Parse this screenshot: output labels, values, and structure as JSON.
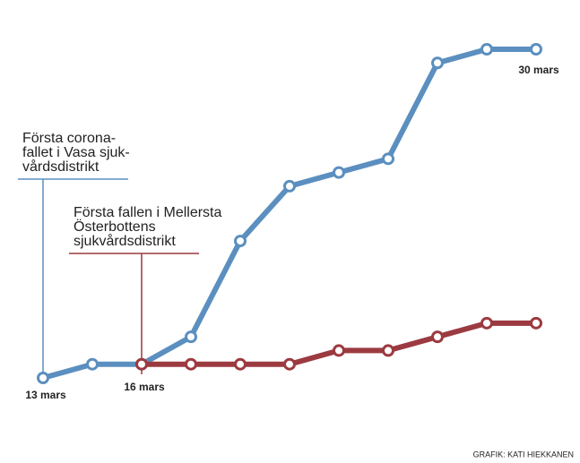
{
  "chart_data": {
    "type": "line",
    "categories": [
      "13 mars",
      null,
      "16 mars",
      null,
      null,
      null,
      null,
      null,
      null,
      null,
      "30 mars"
    ],
    "series": [
      {
        "color": "#5b8fbf",
        "values": [
          0,
          1,
          1,
          3,
          10,
          14,
          15,
          16,
          23,
          24,
          24
        ]
      },
      {
        "color": "#9b3a40",
        "values": [
          null,
          null,
          1,
          1,
          1,
          1,
          2,
          2,
          3,
          4,
          4
        ]
      }
    ],
    "ylim": [
      0,
      24
    ],
    "annotations": [
      {
        "lines": [
          "Första corona-",
          "fallet i Vasa sjuk-",
          "vårdsdistrikt"
        ],
        "color": "#5b8fbf",
        "point": 0
      },
      {
        "lines": [
          "Första fallen i Mellersta",
          "Österbottens",
          "sjukvårdsdistrikt"
        ],
        "color": "#9b3a40",
        "point": 2
      }
    ],
    "credit": "GRAFIK: KATI HIEKKANEN"
  }
}
